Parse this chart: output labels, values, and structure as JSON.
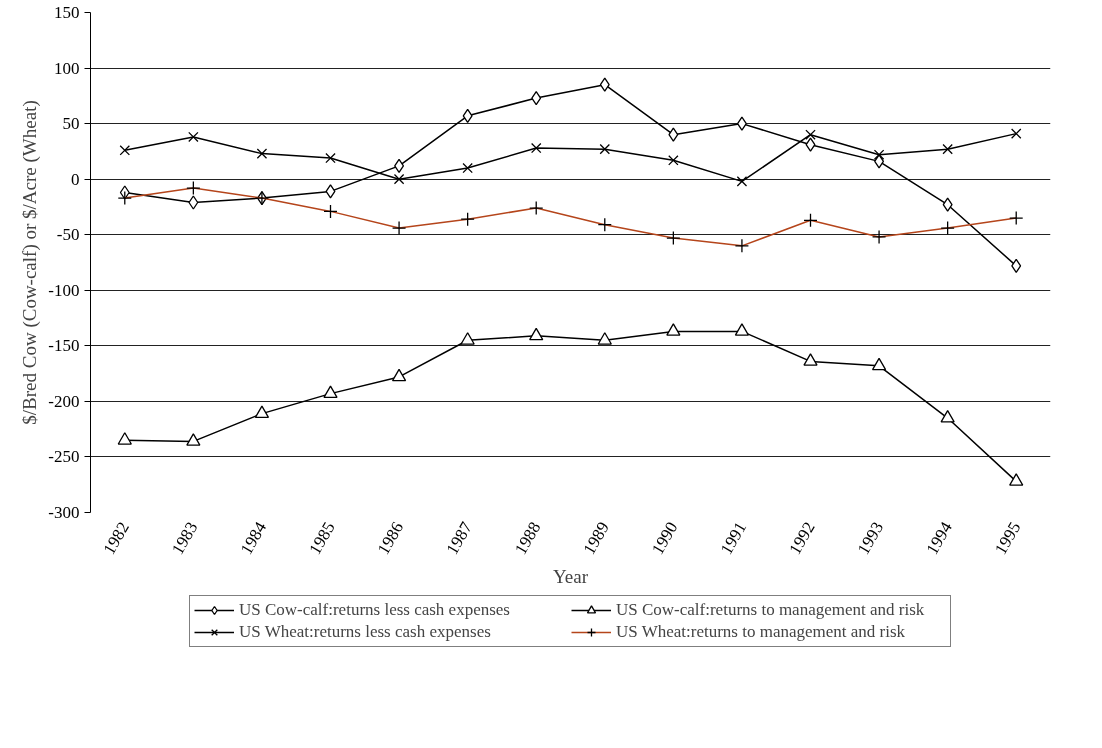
{
  "chart_data": {
    "type": "line",
    "xlabel": "Year",
    "ylabel": "$/Bred Cow (Cow-calf) or $/Acre (Wheat)",
    "categories": [
      "1982",
      "1983",
      "1984",
      "1985",
      "1986",
      "1987",
      "1988",
      "1989",
      "1990",
      "1991",
      "1992",
      "1993",
      "1994",
      "1995"
    ],
    "ylim": [
      -300,
      150
    ],
    "yticks": [
      -300,
      -250,
      -200,
      -150,
      -100,
      -50,
      0,
      50,
      100,
      150
    ],
    "grid": "y",
    "legend": "bottom",
    "line_style": "solid",
    "series": [
      {
        "name": "US Cow-calf:returns less cash expenses",
        "color": "#000000",
        "marker": "diamond",
        "values": [
          -12,
          -21,
          -17,
          -11,
          12,
          57,
          73,
          85,
          40,
          50,
          31,
          16,
          -23,
          -78
        ]
      },
      {
        "name": "US Cow-calf:returns to management and risk",
        "color": "#000000",
        "marker": "triangle",
        "values": [
          -235,
          -236,
          -211,
          -193,
          -178,
          -145,
          -141,
          -145,
          -137,
          -137,
          -164,
          -168,
          -215,
          -272
        ]
      },
      {
        "name": "US Wheat:returns less cash expenses",
        "color": "#000000",
        "marker": "x",
        "values": [
          26,
          38,
          23,
          19,
          0,
          10,
          28,
          27,
          17,
          -2,
          40,
          22,
          27,
          41
        ]
      },
      {
        "name": "US Wheat:returns to management and risk",
        "color": "#b5451b",
        "marker": "cross",
        "values": [
          -17,
          -8,
          -17,
          -29,
          -44,
          -36,
          -26,
          -41,
          -53,
          -60,
          -37,
          -52,
          -44,
          -35
        ]
      }
    ]
  }
}
